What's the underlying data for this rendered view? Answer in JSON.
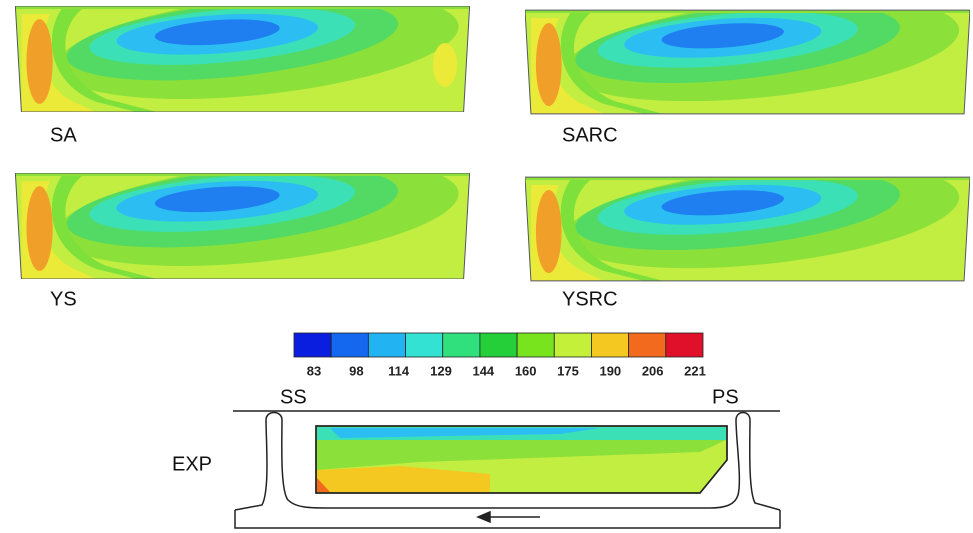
{
  "panels": [
    {
      "label": "SA"
    },
    {
      "label": "SARC"
    },
    {
      "label": "YS"
    },
    {
      "label": "YSRC"
    }
  ],
  "colorbar": {
    "colors": [
      "#0a1ee0",
      "#1468f0",
      "#22b4f2",
      "#34e2d4",
      "#30e07c",
      "#24cf3a",
      "#78e41e",
      "#c4f03a",
      "#f4c820",
      "#f26a1e",
      "#e0102a"
    ],
    "ticks": [
      83,
      98,
      114,
      129,
      144,
      160,
      175,
      190,
      206,
      221
    ]
  },
  "experiment": {
    "label": "EXP",
    "suction_side": "SS",
    "pressure_side": "PS"
  }
}
